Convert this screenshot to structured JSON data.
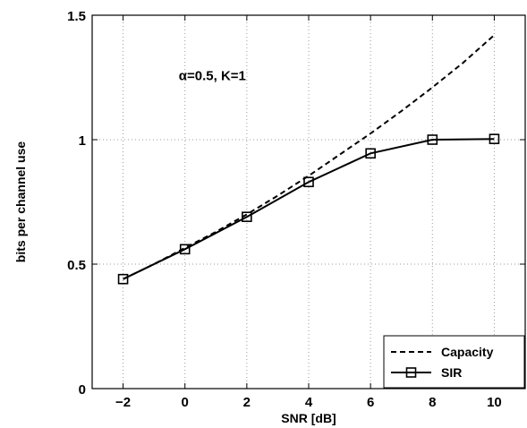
{
  "chart_data": {
    "type": "line",
    "title": "",
    "xlabel": "SNR [dB]",
    "ylabel": "bits per channel use",
    "xlim": [
      -3,
      11
    ],
    "ylim": [
      0,
      1.5
    ],
    "xticks": [
      -2,
      0,
      2,
      4,
      6,
      8,
      10
    ],
    "xtick_labels": [
      "−2",
      "0",
      "2",
      "4",
      "6",
      "8",
      "10"
    ],
    "yticks": [
      0,
      0.5,
      1,
      1.5
    ],
    "ytick_labels": [
      "0",
      "0.5",
      "1",
      "1.5"
    ],
    "grid": true,
    "legend_position": "bottom-right",
    "annotation": {
      "text": "α=0.5, K=1",
      "x": -0.2,
      "y": 1.24
    },
    "series": [
      {
        "name": "Capacity",
        "style": "dashed",
        "marker": "none",
        "x": [
          -2,
          -1,
          0,
          1,
          2,
          3,
          4,
          5,
          6,
          7,
          8,
          9,
          10
        ],
        "y": [
          0.44,
          0.5,
          0.565,
          0.63,
          0.7,
          0.775,
          0.855,
          0.94,
          1.025,
          1.115,
          1.21,
          1.31,
          1.42
        ]
      },
      {
        "name": "SIR",
        "style": "solid",
        "marker": "square",
        "x": [
          -2,
          0,
          2,
          4,
          6,
          8,
          10
        ],
        "y": [
          0.44,
          0.56,
          0.69,
          0.83,
          0.945,
          1.0,
          1.003
        ]
      }
    ]
  }
}
